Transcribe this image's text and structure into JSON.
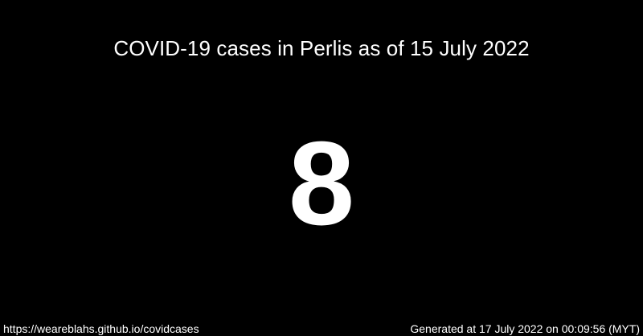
{
  "title": "COVID-19 cases in Perlis as of 15 July 2022",
  "case_count": "8",
  "footer": {
    "url": "https://weareblahs.github.io/covidcases",
    "generated": "Generated at 17 July 2022 on 00:09:56 (MYT)"
  },
  "colors": {
    "background": "#000000",
    "text": "#ffffff"
  }
}
